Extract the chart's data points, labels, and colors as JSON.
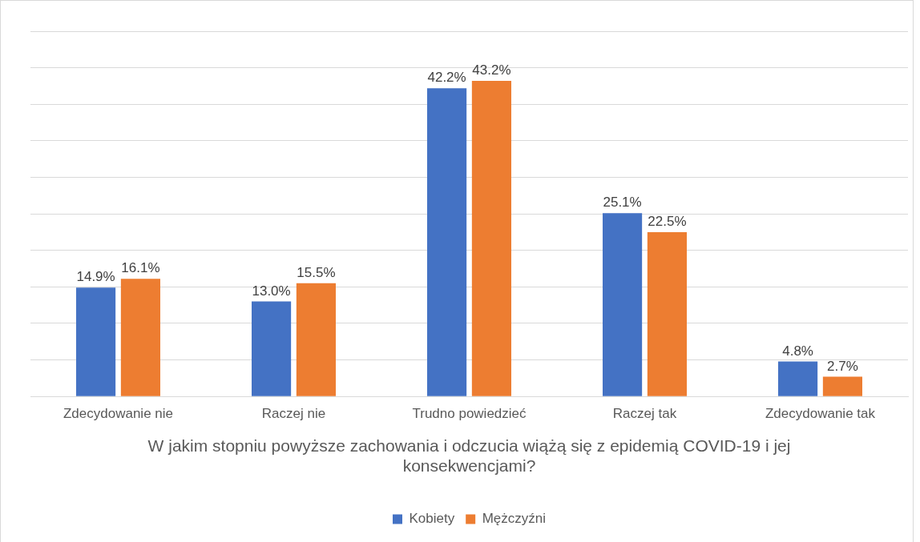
{
  "chart_data": {
    "type": "bar",
    "xlabel": "W jakim stopniu powyższe zachowania i odczucia wiążą się z epidemią COVID-19 i jej konsekwencjami?",
    "categories": [
      "Zdecydowanie nie",
      "Raczej nie",
      "Trudno powiedzieć",
      "Raczej tak",
      "Zdecydowanie tak"
    ],
    "series": [
      {
        "name": "Kobiety",
        "color": "#4472c4",
        "values": [
          14.9,
          13.0,
          42.2,
          25.1,
          4.8
        ],
        "value_labels": [
          "14.9%",
          "13.0%",
          "42.2%",
          "25.1%",
          "4.8%"
        ]
      },
      {
        "name": "Mężczyźni",
        "color": "#ed7d31",
        "values": [
          16.1,
          15.5,
          43.2,
          22.5,
          2.7
        ],
        "value_labels": [
          "16.1%",
          "15.5%",
          "43.2%",
          "22.5%",
          "2.7%"
        ]
      }
    ],
    "ylim": [
      0,
      50
    ],
    "yticks": [
      {
        "value": 0,
        "label": null
      },
      {
        "value": 5,
        "label": null
      },
      {
        "value": 10,
        "label": null
      },
      {
        "value": 15,
        "label": null
      },
      {
        "value": 20,
        "label": null
      },
      {
        "value": 25,
        "label": null
      },
      {
        "value": 30,
        "label": null
      },
      {
        "value": 35,
        "label": null
      },
      {
        "value": 40,
        "label": null
      },
      {
        "value": 45,
        "label": null
      },
      {
        "value": 50,
        "label": null
      }
    ],
    "tick_labels": "x",
    "grid": "y",
    "legend": "bottom"
  }
}
